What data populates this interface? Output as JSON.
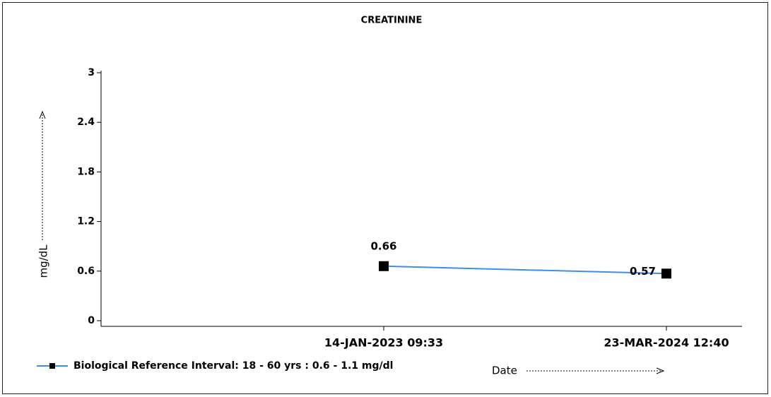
{
  "chart_data": {
    "type": "line",
    "title": "CREATININE",
    "categories": [
      "14-JAN-2023 09:33",
      "23-MAR-2024 12:40"
    ],
    "series": [
      {
        "name": "Biological Reference Interval: 18 - 60 yrs : 0.6 - 1.1 mg/dl",
        "color": "#3d8ee8",
        "marker_color": "#000000",
        "values": [
          0.66,
          0.57
        ]
      }
    ],
    "ylim": [
      0,
      3
    ],
    "yticks": [
      0,
      0.6,
      1.2,
      1.8,
      2.4,
      3
    ],
    "y_label": "mg/dL",
    "x_label": "Date",
    "legend": "bottom-left"
  }
}
